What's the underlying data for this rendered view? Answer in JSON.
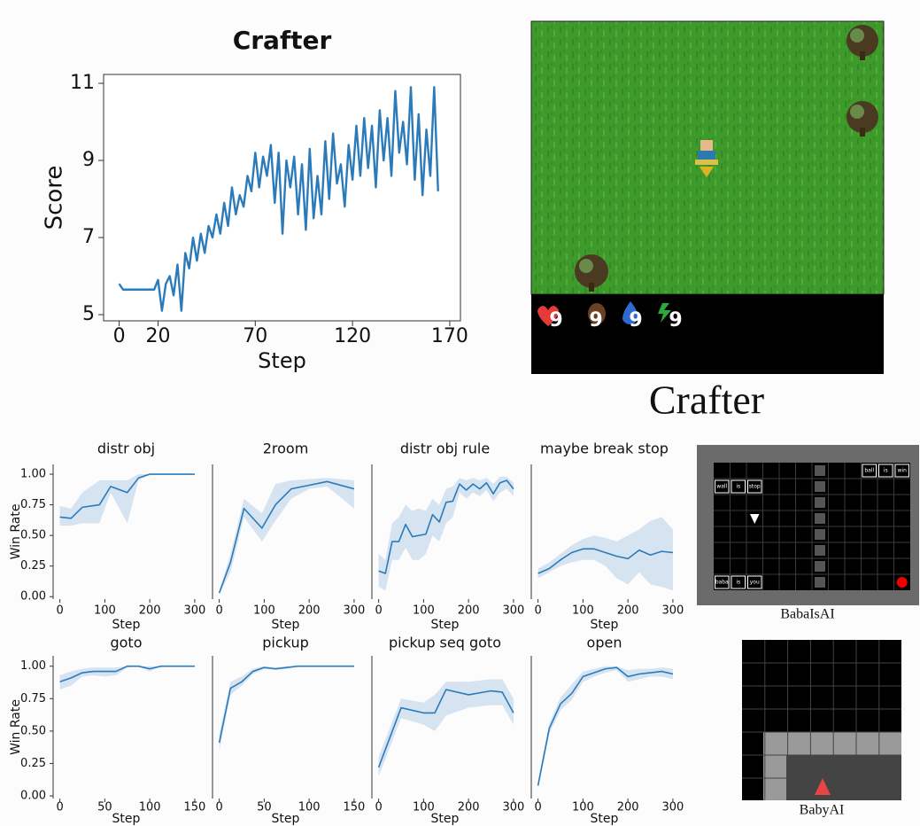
{
  "chart_data": [
    {
      "type": "line",
      "title": "Crafter",
      "xlabel": "Step",
      "ylabel": "Score",
      "color": "#2b7bba",
      "xlim": [
        -8,
        175.5
      ],
      "ylim": [
        4.84,
        11.23
      ],
      "xticks": [
        0,
        20,
        70,
        120,
        170
      ],
      "yticks": [
        5,
        7,
        9,
        11
      ],
      "x": [
        0,
        2,
        4,
        6,
        8,
        10,
        12,
        14,
        16,
        18,
        20,
        22,
        24,
        26,
        28,
        30,
        32,
        34,
        36,
        38,
        40,
        42,
        44,
        46,
        48,
        50,
        52,
        54,
        56,
        58,
        60,
        62,
        64,
        66,
        68,
        70,
        72,
        74,
        76,
        78,
        80,
        82,
        84,
        86,
        88,
        90,
        92,
        94,
        96,
        98,
        100,
        102,
        104,
        106,
        108,
        110,
        112,
        114,
        116,
        118,
        120,
        122,
        124,
        126,
        128,
        130,
        132,
        134,
        136,
        138,
        140,
        142,
        144,
        146,
        148,
        150,
        152,
        154,
        156,
        158,
        160,
        162,
        164
      ],
      "values": [
        5.8,
        5.65,
        5.65,
        5.65,
        5.65,
        5.65,
        5.65,
        5.65,
        5.65,
        5.65,
        5.9,
        5.1,
        5.8,
        6.0,
        5.5,
        6.3,
        5.1,
        6.6,
        6.2,
        7.0,
        6.4,
        7.1,
        6.6,
        7.3,
        7.0,
        7.6,
        7.1,
        7.9,
        7.3,
        8.3,
        7.6,
        8.1,
        7.8,
        8.6,
        8.2,
        9.2,
        8.3,
        9.1,
        8.6,
        9.4,
        7.9,
        9.2,
        7.1,
        9.0,
        8.3,
        9.1,
        7.6,
        8.9,
        7.2,
        9.3,
        7.5,
        8.6,
        7.6,
        9.5,
        8.0,
        9.7,
        8.4,
        8.9,
        7.8,
        9.4,
        8.5,
        9.9,
        8.6,
        10.1,
        8.8,
        9.9,
        8.3,
        10.3,
        9.0,
        10.1,
        8.6,
        10.8,
        9.2,
        10.0,
        8.9,
        10.9,
        8.5,
        10.2,
        8.1,
        9.8,
        8.6,
        10.9,
        8.2
      ]
    },
    {
      "type": "line",
      "title": "distr obj",
      "xlabel": "Step",
      "ylabel": "Win Rate",
      "color": "#2b7bba",
      "band_color": "#c9dbed",
      "xlim": [
        -15,
        310
      ],
      "ylim": [
        -0.02,
        1.08
      ],
      "xticks": [
        0,
        100,
        200,
        300
      ],
      "yticks": [
        {
          "value": 0,
          "label": "0.00"
        },
        {
          "value": 0.25,
          "label": "0.25"
        },
        {
          "value": 0.5,
          "label": "0.50"
        },
        {
          "value": 0.75,
          "label": "0.75"
        },
        {
          "value": 1,
          "label": "1.00"
        }
      ],
      "x": [
        0,
        25,
        50,
        88,
        113,
        150,
        175,
        200,
        225,
        250,
        275,
        300
      ],
      "values": [
        0.65,
        0.64,
        0.73,
        0.75,
        0.9,
        0.85,
        0.97,
        1.0,
        1.0,
        1.0,
        1.0,
        1.0
      ],
      "lower": [
        0.58,
        0.58,
        0.6,
        0.6,
        0.85,
        0.6,
        0.95,
        1,
        1,
        1,
        1,
        1
      ],
      "upper": [
        0.74,
        0.72,
        0.85,
        0.95,
        0.95,
        0.95,
        1,
        1,
        1,
        1,
        1,
        1
      ]
    },
    {
      "type": "line",
      "title": "2room",
      "xlabel": "Step",
      "color": "#2b7bba",
      "band_color": "#c9dbed",
      "xlim": [
        -15,
        310
      ],
      "ylim": [
        -0.02,
        1.08
      ],
      "xticks": [
        0,
        100,
        200,
        300
      ],
      "x": [
        0,
        25,
        55,
        95,
        125,
        160,
        200,
        240,
        300
      ],
      "values": [
        0.03,
        0.28,
        0.72,
        0.56,
        0.75,
        0.88,
        0.91,
        0.94,
        0.88
      ],
      "lower": [
        0.02,
        0.2,
        0.65,
        0.45,
        0.62,
        0.8,
        0.88,
        0.9,
        0.72
      ],
      "upper": [
        0.05,
        0.35,
        0.8,
        0.68,
        0.92,
        0.95,
        0.96,
        0.97,
        0.95
      ]
    },
    {
      "type": "line",
      "title": "distr obj rule",
      "xlabel": "Step",
      "color": "#2b7bba",
      "band_color": "#c9dbed",
      "xlim": [
        -15,
        310
      ],
      "ylim": [
        -0.02,
        1.08
      ],
      "xticks": [
        0,
        100,
        200,
        300
      ],
      "x": [
        0,
        15,
        30,
        45,
        60,
        75,
        90,
        105,
        120,
        135,
        150,
        165,
        180,
        195,
        210,
        225,
        240,
        255,
        270,
        285,
        300
      ],
      "values": [
        0.21,
        0.19,
        0.45,
        0.45,
        0.59,
        0.49,
        0.5,
        0.51,
        0.67,
        0.61,
        0.77,
        0.78,
        0.92,
        0.87,
        0.92,
        0.88,
        0.93,
        0.84,
        0.93,
        0.95,
        0.88
      ],
      "lower": [
        0.08,
        0.05,
        0.3,
        0.3,
        0.4,
        0.3,
        0.3,
        0.35,
        0.5,
        0.45,
        0.6,
        0.65,
        0.85,
        0.8,
        0.85,
        0.82,
        0.87,
        0.78,
        0.85,
        0.88,
        0.82
      ],
      "upper": [
        0.35,
        0.3,
        0.6,
        0.65,
        0.75,
        0.7,
        0.72,
        0.7,
        0.8,
        0.75,
        0.88,
        0.9,
        0.97,
        0.95,
        0.97,
        0.95,
        0.97,
        0.92,
        0.98,
        0.98,
        0.93
      ]
    },
    {
      "type": "line",
      "title": "maybe break stop",
      "xlabel": "Step",
      "color": "#2b7bba",
      "band_color": "#c9dbed",
      "xlim": [
        -15,
        310
      ],
      "ylim": [
        -0.02,
        1.08
      ],
      "xticks": [
        0,
        100,
        200,
        300
      ],
      "x": [
        0,
        25,
        50,
        75,
        100,
        125,
        150,
        175,
        200,
        225,
        250,
        275,
        300
      ],
      "values": [
        0.19,
        0.23,
        0.3,
        0.36,
        0.39,
        0.39,
        0.36,
        0.33,
        0.31,
        0.38,
        0.34,
        0.37,
        0.36
      ],
      "lower": [
        0.15,
        0.2,
        0.25,
        0.28,
        0.3,
        0.3,
        0.25,
        0.15,
        0.1,
        0.2,
        0.1,
        0.08,
        0.05
      ],
      "upper": [
        0.23,
        0.28,
        0.35,
        0.42,
        0.47,
        0.5,
        0.48,
        0.45,
        0.5,
        0.55,
        0.62,
        0.65,
        0.55
      ]
    },
    {
      "type": "line",
      "title": "goto",
      "xlabel": "Step",
      "ylabel": "Win Rate",
      "color": "#2b7bba",
      "band_color": "#c9dbed",
      "xlim": [
        -7.5,
        155
      ],
      "ylim": [
        -0.02,
        1.08
      ],
      "xticks": [
        0,
        50,
        100,
        150
      ],
      "yticks": [
        {
          "value": 0,
          "label": "0.00"
        },
        {
          "value": 0.25,
          "label": "0.25"
        },
        {
          "value": 0.5,
          "label": "0.50"
        },
        {
          "value": 0.75,
          "label": "0.75"
        },
        {
          "value": 1,
          "label": "1.00"
        }
      ],
      "x": [
        0,
        12.5,
        25,
        37.5,
        50,
        62.5,
        75,
        87.5,
        100,
        112.5,
        125,
        137.5,
        150
      ],
      "values": [
        0.88,
        0.91,
        0.95,
        0.96,
        0.96,
        0.96,
        1.0,
        1.0,
        0.98,
        1.0,
        1.0,
        1.0,
        1.0
      ],
      "lower": [
        0.82,
        0.85,
        0.92,
        0.93,
        0.92,
        0.93,
        0.99,
        1,
        0.96,
        1,
        1,
        1,
        1
      ],
      "upper": [
        0.93,
        0.96,
        0.98,
        0.99,
        0.99,
        0.99,
        1,
        1,
        1,
        1,
        1,
        1,
        1
      ]
    },
    {
      "type": "line",
      "title": "pickup",
      "xlabel": "Step",
      "color": "#2b7bba",
      "band_color": "#c9dbed",
      "xlim": [
        -7.5,
        155
      ],
      "ylim": [
        -0.02,
        1.08
      ],
      "xticks": [
        0,
        50,
        100,
        150
      ],
      "x": [
        0,
        12.5,
        25,
        37.5,
        50,
        62.5,
        75,
        87.5,
        100,
        125,
        150
      ],
      "values": [
        0.41,
        0.83,
        0.88,
        0.96,
        0.99,
        0.98,
        0.99,
        1,
        1,
        1,
        1
      ],
      "lower": [
        0.35,
        0.78,
        0.85,
        0.94,
        0.98,
        0.97,
        0.98,
        1,
        1,
        1,
        1
      ],
      "upper": [
        0.48,
        0.88,
        0.92,
        0.98,
        1,
        0.99,
        1,
        1,
        1,
        1,
        1
      ]
    },
    {
      "type": "line",
      "title": "pickup seq goto",
      "xlabel": "Step",
      "color": "#2b7bba",
      "band_color": "#c9dbed",
      "xlim": [
        -15,
        310
      ],
      "ylim": [
        -0.02,
        1.08
      ],
      "xticks": [
        0,
        100,
        200,
        300
      ],
      "x": [
        0,
        50,
        100,
        125,
        150,
        200,
        250,
        275,
        300
      ],
      "values": [
        0.22,
        0.68,
        0.64,
        0.64,
        0.82,
        0.78,
        0.81,
        0.8,
        0.64
      ],
      "lower": [
        0.15,
        0.6,
        0.55,
        0.5,
        0.62,
        0.68,
        0.7,
        0.7,
        0.55
      ],
      "upper": [
        0.3,
        0.75,
        0.72,
        0.78,
        0.88,
        0.88,
        0.9,
        0.9,
        0.75
      ]
    },
    {
      "type": "line",
      "title": "open",
      "xlabel": "Step",
      "color": "#2b7bba",
      "band_color": "#c9dbed",
      "xlim": [
        -15,
        310
      ],
      "ylim": [
        -0.02,
        1.08
      ],
      "xticks": [
        0,
        100,
        200,
        300
      ],
      "x": [
        0,
        25,
        50,
        75,
        100,
        125,
        150,
        175,
        200,
        225,
        250,
        275,
        300
      ],
      "values": [
        0.08,
        0.52,
        0.71,
        0.79,
        0.92,
        0.95,
        0.98,
        0.99,
        0.92,
        0.94,
        0.95,
        0.96,
        0.94
      ],
      "lower": [
        0.05,
        0.48,
        0.66,
        0.74,
        0.88,
        0.92,
        0.95,
        0.97,
        0.88,
        0.9,
        0.92,
        0.92,
        0.9
      ],
      "upper": [
        0.12,
        0.56,
        0.76,
        0.86,
        0.96,
        0.98,
        1,
        1,
        0.97,
        0.98,
        0.98,
        0.99,
        0.98
      ]
    }
  ],
  "panels": {
    "crafter": {
      "caption": "Crafter",
      "inventory": [
        9,
        9,
        9,
        9
      ]
    },
    "babaisai": {
      "caption": "BabaIsAI",
      "rules": [
        [
          "ball",
          "is",
          "win"
        ],
        [
          "wall",
          "is",
          "stop"
        ],
        [
          "baba",
          "is",
          "you"
        ]
      ]
    },
    "babyai": {
      "caption": "BabyAI"
    }
  }
}
